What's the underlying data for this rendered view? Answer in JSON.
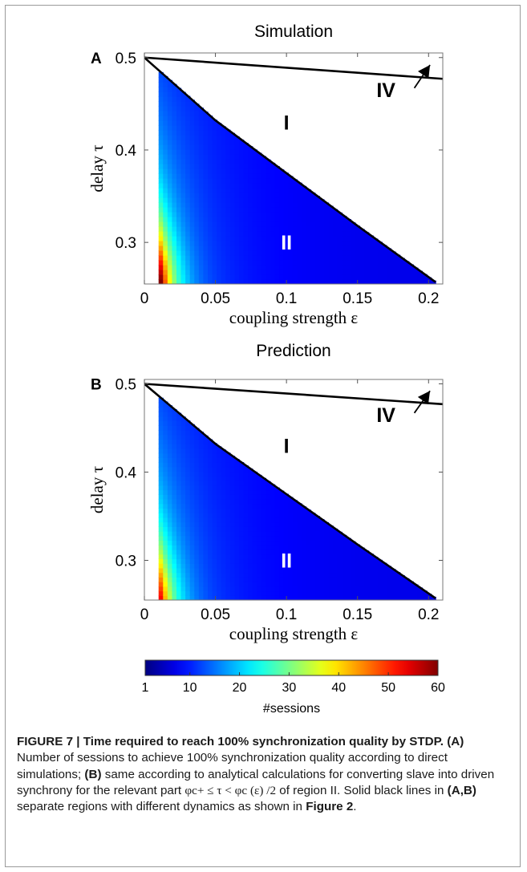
{
  "chart_data": [
    {
      "type": "heatmap",
      "panel_letter": "A",
      "title": "Simulation",
      "xlabel": "coupling strength ε",
      "ylabel": "delay τ",
      "xlim": [
        0,
        0.21
      ],
      "ylim": [
        0.255,
        0.505
      ],
      "xticks": [
        0,
        0.05,
        0.1,
        0.15,
        0.2
      ],
      "xtick_labels": [
        "0",
        "0.05",
        "0.1",
        "0.15",
        "0.2"
      ],
      "yticks": [
        0.3,
        0.4,
        0.5
      ],
      "ytick_labels": [
        "0.3",
        "0.4",
        "0.5"
      ],
      "region_labels": [
        {
          "text": "I",
          "x": 0.1,
          "y": 0.43,
          "color": "#000000"
        },
        {
          "text": "II",
          "x": 0.1,
          "y": 0.3,
          "color": "#ffffff"
        },
        {
          "text": "IV",
          "x": 0.17,
          "y": 0.465,
          "color": "#000000"
        }
      ],
      "boundary_curve": {
        "x": [
          0,
          0.05,
          0.1,
          0.15,
          0.205
        ],
        "y": [
          0.5,
          0.432,
          0.375,
          0.318,
          0.257
        ]
      },
      "upper_line": {
        "x": [
          0,
          0.21
        ],
        "y": [
          0.5,
          0.477
        ]
      },
      "arrow": {
        "from": [
          0.19,
          0.467
        ],
        "to": [
          0.201,
          0.492
        ]
      },
      "filled_region_x_start": 0.01,
      "hotspot_scale": 1.0
    },
    {
      "type": "heatmap",
      "panel_letter": "B",
      "title": "Prediction",
      "xlabel": "coupling strength ε",
      "ylabel": "delay τ",
      "xlim": [
        0,
        0.21
      ],
      "ylim": [
        0.255,
        0.505
      ],
      "xticks": [
        0,
        0.05,
        0.1,
        0.15,
        0.2
      ],
      "xtick_labels": [
        "0",
        "0.05",
        "0.1",
        "0.15",
        "0.2"
      ],
      "yticks": [
        0.3,
        0.4,
        0.5
      ],
      "ytick_labels": [
        "0.3",
        "0.4",
        "0.5"
      ],
      "region_labels": [
        {
          "text": "I",
          "x": 0.1,
          "y": 0.43,
          "color": "#000000"
        },
        {
          "text": "II",
          "x": 0.1,
          "y": 0.3,
          "color": "#ffffff"
        },
        {
          "text": "IV",
          "x": 0.17,
          "y": 0.465,
          "color": "#000000"
        }
      ],
      "boundary_curve": {
        "x": [
          0,
          0.05,
          0.1,
          0.15,
          0.205
        ],
        "y": [
          0.5,
          0.432,
          0.375,
          0.318,
          0.257
        ]
      },
      "upper_line": {
        "x": [
          0,
          0.21
        ],
        "y": [
          0.5,
          0.477
        ]
      },
      "arrow": {
        "from": [
          0.19,
          0.467
        ],
        "to": [
          0.201,
          0.492
        ]
      },
      "filled_region_x_start": 0.01,
      "hotspot_scale": 0.8
    }
  ],
  "colorbar": {
    "label": "#sessions",
    "min": 1,
    "max": 60,
    "ticks": [
      1,
      10,
      20,
      30,
      40,
      50,
      60
    ],
    "tick_labels": [
      "1",
      "10",
      "20",
      "30",
      "40",
      "50",
      "60"
    ],
    "colormap": "jet"
  },
  "caption": {
    "heading": "FIGURE 7 | Time required to reach 100% synchronization quality by STDP.",
    "part_a_label": "(A)",
    "part_a_text": "Number of sessions to achieve 100% synchronization quality according to direct simulations;",
    "part_b_label": "(B)",
    "part_b_text": "same according to analytical calculations for converting slave into driven synchrony for the relevant part",
    "math_expression": "φc+ ≤ τ < φc (ε) /2",
    "text_after_math": "of region II. Solid black lines in",
    "panels_ref": "(A,B)",
    "text_before_figref": "separate regions with different dynamics as shown in",
    "figure_ref": "Figure 2",
    "end": "."
  }
}
